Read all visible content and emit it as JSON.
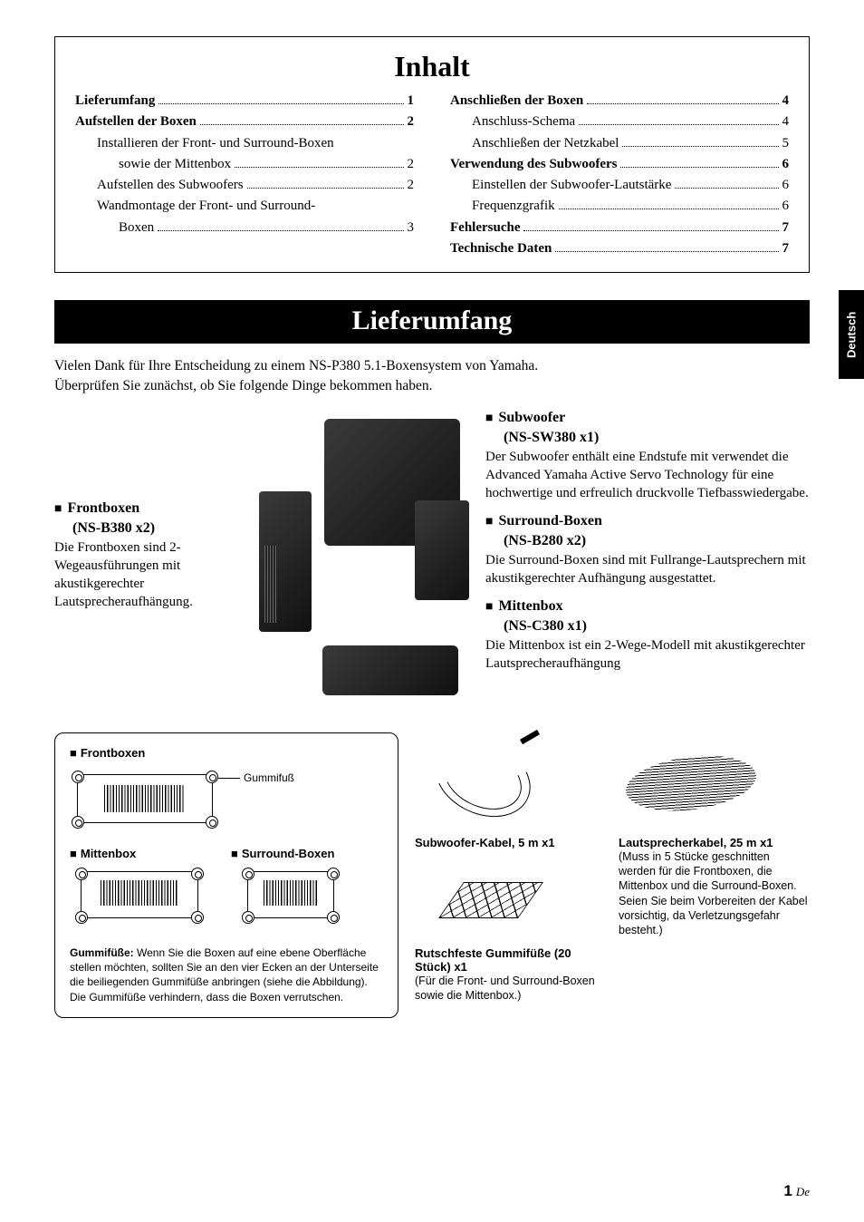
{
  "side_tab": "Deutsch",
  "page_number": "1",
  "page_suffix": "De",
  "toc": {
    "title": "Inhalt",
    "left": [
      {
        "label": "Lieferumfang",
        "page": "1",
        "bold": true,
        "indent": 0
      },
      {
        "label": "Aufstellen der Boxen",
        "page": "2",
        "bold": true,
        "indent": 0
      },
      {
        "label": "Installieren der Front- und Surround-Boxen",
        "page": "",
        "bold": false,
        "indent": 1
      },
      {
        "label": "sowie der Mittenbox",
        "page": "2",
        "bold": false,
        "indent": 2
      },
      {
        "label": "Aufstellen des Subwoofers",
        "page": "2",
        "bold": false,
        "indent": 1
      },
      {
        "label": "Wandmontage der Front- und Surround-",
        "page": "",
        "bold": false,
        "indent": 1
      },
      {
        "label": "Boxen",
        "page": "3",
        "bold": false,
        "indent": 2
      }
    ],
    "right": [
      {
        "label": "Anschließen der Boxen",
        "page": "4",
        "bold": true,
        "indent": 0
      },
      {
        "label": "Anschluss-Schema",
        "page": "4",
        "bold": false,
        "indent": 1
      },
      {
        "label": "Anschließen der Netzkabel",
        "page": "5",
        "bold": false,
        "indent": 1
      },
      {
        "label": "Verwendung des Subwoofers",
        "page": "6",
        "bold": true,
        "indent": 0
      },
      {
        "label": "Einstellen der Subwoofer-Lautstärke",
        "page": "6",
        "bold": false,
        "indent": 1
      },
      {
        "label": "Frequenzgrafik",
        "page": "6",
        "bold": false,
        "indent": 1
      },
      {
        "label": "Fehlersuche",
        "page": "7",
        "bold": true,
        "indent": 0
      },
      {
        "label": "Technische Daten",
        "page": "7",
        "bold": true,
        "indent": 0
      }
    ]
  },
  "section1": {
    "title": "Lieferumfang",
    "intro1": "Vielen Dank für Ihre Entscheidung zu einem NS-P380 5.1-Boxensystem von Yamaha.",
    "intro2": "Überprüfen Sie zunächst, ob Sie folgende Dinge bekommen haben."
  },
  "front": {
    "heading": "Frontboxen",
    "model": "(NS-B380 x2)",
    "body": "Die Frontboxen sind 2-Wegeausführungen mit akustikgerechter Lautsprecheraufhängung."
  },
  "sub": {
    "heading": "Subwoofer",
    "model": "(NS-SW380 x1)",
    "body": "Der Subwoofer enthält eine Endstufe mit verwendet die Advanced Yamaha Active Servo Technology für eine hochwertige und erfreulich druckvolle Tiefbasswiedergabe."
  },
  "surr": {
    "heading": "Surround-Boxen",
    "model": "(NS-B280 x2)",
    "body": "Die Surround-Boxen sind mit Fullrange-Lautsprechern mit akustikgerechter Aufhängung ausgestattet."
  },
  "ctr": {
    "heading": "Mittenbox",
    "model": "(NS-C380 x1)",
    "body": "Die Mittenbox ist ein 2-Wege-Modell mit akustikgerechter Lautsprecheraufhängung"
  },
  "diagram": {
    "front_title": "Frontboxen",
    "center_title": "Mittenbox",
    "surround_title": "Surround-Boxen",
    "rubber_foot_label": "Gummifuß",
    "note_bold": "Gummifüße:",
    "note_body": " Wenn Sie die Boxen auf eine ebene Oberfläche stellen möchten, sollten Sie an den vier Ecken an der Unterseite die beiliegenden Gummifüße anbringen (siehe die Abbildung). Die Gummifüße verhindern, dass die Boxen verrutschen."
  },
  "accessories": {
    "sub_cable_title": "Subwoofer-Kabel, 5 m x1",
    "spk_cable_title": "Lautsprecherkabel, 25 m x1",
    "spk_cable_note": "(Muss in 5 Stücke geschnitten werden für die Frontboxen, die Mittenbox und die Surround-Boxen. Seien Sie beim Vorbereiten der Kabel vorsichtig, da Verletzungsgefahr besteht.)",
    "pads_title": "Rutschfeste Gummifüße (20 Stück) x1",
    "pads_note": "(Für die Front- und Surround-Boxen sowie die Mittenbox.)"
  }
}
